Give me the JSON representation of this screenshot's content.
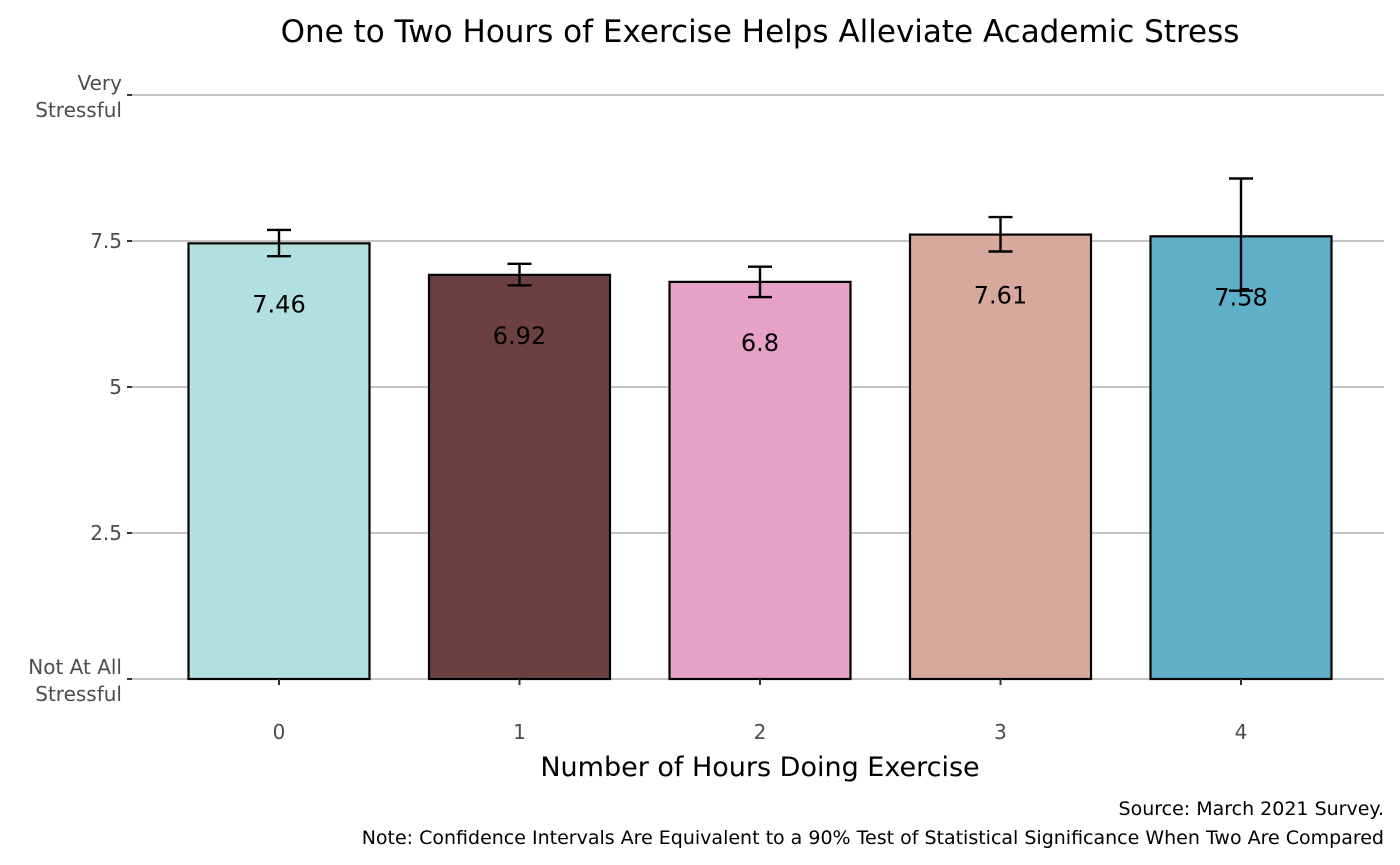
{
  "chart_data": {
    "type": "bar",
    "title": "One to Two Hours of Exercise Helps Alleviate Academic Stress",
    "xlabel": "Number of Hours Doing Exercise",
    "ylabel": "",
    "categories": [
      "0",
      "1",
      "2",
      "3",
      "4"
    ],
    "values": [
      7.46,
      6.92,
      6.8,
      7.61,
      7.58
    ],
    "value_labels": [
      "7.46",
      "6.92",
      "6.8",
      "7.61",
      "7.58"
    ],
    "error_low": [
      7.24,
      6.74,
      6.54,
      7.32,
      6.65
    ],
    "error_high": [
      7.69,
      7.11,
      7.06,
      7.91,
      8.57
    ],
    "colors": [
      "#b2dfe0",
      "#6b4042",
      "#e6a1c6",
      "#d8a89c",
      "#5fafc9"
    ],
    "ylim": [
      0,
      10
    ],
    "y_ticks": [
      {
        "value": 0,
        "lines": [
          "Not At All",
          "Stressful"
        ]
      },
      {
        "value": 2.5,
        "lines": [
          "2.5"
        ]
      },
      {
        "value": 5,
        "lines": [
          "5"
        ]
      },
      {
        "value": 7.5,
        "lines": [
          "7.5"
        ]
      },
      {
        "value": 10,
        "lines": [
          "Very",
          "Stressful"
        ]
      }
    ],
    "grid": true,
    "legend": "none",
    "captions": [
      "Source: March 2021 Survey.",
      "Note: Confidence Intervals Are Equivalent to a 90% Test of Statistical Significance When Two Are Compared"
    ]
  }
}
